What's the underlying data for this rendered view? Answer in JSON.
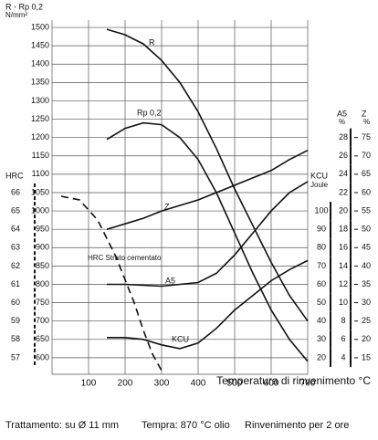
{
  "chart_data": {
    "type": "line",
    "x_label": "Temperatura di rinvenimento °C",
    "xlim": [
      0,
      700
    ],
    "xticks": [
      100,
      200,
      300,
      400,
      500,
      600,
      700
    ],
    "grid": true,
    "axes": [
      {
        "title": "R - Rp 0,2",
        "unit": "N/mm²",
        "ylim": [
          555,
          1520
        ],
        "yticks": [
          600,
          650,
          700,
          750,
          800,
          850,
          900,
          950,
          1000,
          1050,
          1100,
          1150,
          1200,
          1250,
          1300,
          1350,
          1400,
          1450,
          1500
        ]
      },
      {
        "title": "HRC",
        "ylim": [
          56.1,
          75.4
        ],
        "yticks": [
          57,
          58,
          59,
          60,
          61,
          62,
          63,
          64,
          65,
          66
        ]
      },
      {
        "title": "KCU",
        "unit": "Joule",
        "ylim": [
          11,
          204
        ],
        "yticks": [
          20,
          30,
          40,
          50,
          60,
          70,
          80,
          90,
          100
        ]
      },
      {
        "title": "A5",
        "unit": "%",
        "ylim": [
          2.2,
          40.8
        ],
        "yticks": [
          4,
          6,
          8,
          10,
          12,
          14,
          16,
          18,
          20,
          22,
          24,
          26,
          28
        ]
      },
      {
        "title": "Z",
        "unit": "%",
        "ylim": [
          10.5,
          107
        ],
        "yticks": [
          15,
          20,
          25,
          30,
          35,
          40,
          45,
          50,
          55,
          60,
          65,
          70,
          75
        ]
      }
    ],
    "series": [
      {
        "name": "R",
        "axis": 0,
        "color": "#111111",
        "x": [
          150,
          200,
          250,
          300,
          350,
          400,
          450,
          500,
          550,
          600,
          650,
          700
        ],
        "values": [
          1495,
          1480,
          1455,
          1410,
          1350,
          1270,
          1170,
          1060,
          960,
          860,
          770,
          700
        ]
      },
      {
        "name": "Rp 0,2",
        "axis": 0,
        "color": "#111111",
        "x": [
          150,
          200,
          250,
          300,
          350,
          400,
          450,
          500,
          550,
          600,
          650,
          700
        ],
        "values": [
          1195,
          1225,
          1240,
          1235,
          1200,
          1140,
          1050,
          940,
          830,
          730,
          650,
          590
        ]
      },
      {
        "name": "Z",
        "axis": 4,
        "color": "#111111",
        "x": [
          150,
          200,
          250,
          300,
          400,
          500,
          600,
          650,
          700
        ],
        "values": [
          50,
          51.5,
          53,
          55,
          58,
          62,
          66,
          69,
          71.5
        ]
      },
      {
        "name": "A5",
        "axis": 3,
        "color": "#111111",
        "x": [
          150,
          200,
          300,
          400,
          450,
          500,
          550,
          600,
          650,
          700
        ],
        "values": [
          12,
          12,
          11.8,
          12.2,
          13.2,
          15.2,
          17.6,
          20,
          22,
          23.2
        ]
      },
      {
        "name": "KCU",
        "axis": 2,
        "color": "#111111",
        "x": [
          150,
          200,
          250,
          300,
          350,
          400,
          450,
          500,
          550,
          600,
          650,
          700
        ],
        "values": [
          31,
          31,
          30,
          27,
          25,
          28,
          36,
          46,
          54,
          62,
          68,
          73
        ]
      },
      {
        "name": "HRC Strato cementato",
        "axis": 1,
        "color": "#111111",
        "dashed": true,
        "x": [
          25,
          75,
          125,
          175,
          225,
          250,
          275,
          300
        ],
        "values": [
          65.8,
          65.6,
          64.5,
          62.5,
          60,
          58.5,
          57.2,
          56.3
        ]
      }
    ],
    "notes": [
      "Trattamento: su  Ø 11 mm",
      "Tempra: 870 °C olio",
      "Rinvenimento per 2 ore"
    ]
  }
}
